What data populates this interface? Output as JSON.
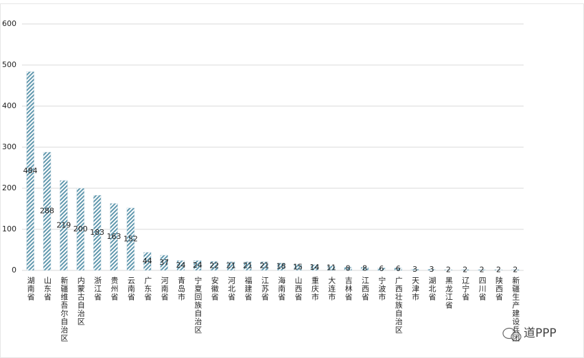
{
  "chart_data": {
    "type": "bar",
    "categories": [
      "湖南省",
      "山东省",
      "新疆维吾尔自治区",
      "内蒙古自治区",
      "浙江省",
      "贵州省",
      "云南省",
      "广东省",
      "河南省",
      "青岛市",
      "宁夏回族自治区",
      "安徽省",
      "河北省",
      "福建省",
      "江苏省",
      "海南省",
      "山西省",
      "重庆市",
      "大连市",
      "吉林省",
      "江西省",
      "宁波市",
      "广西壮族自治区",
      "天津市",
      "湖北省",
      "黑龙江省",
      "辽宁省",
      "四川省",
      "陕西省",
      "新疆生产建设兵团"
    ],
    "values": [
      484,
      288,
      219,
      200,
      183,
      163,
      152,
      44,
      37,
      24,
      24,
      22,
      21,
      21,
      21,
      18,
      15,
      14,
      11,
      8,
      8,
      6,
      6,
      3,
      3,
      2,
      2,
      2,
      2,
      2
    ],
    "color": "#5f97ad",
    "ylim": [
      0,
      600
    ],
    "yticks": [
      0,
      100,
      200,
      300,
      400,
      500,
      600
    ],
    "grid": true,
    "annotations": [
      "道PPP"
    ]
  }
}
